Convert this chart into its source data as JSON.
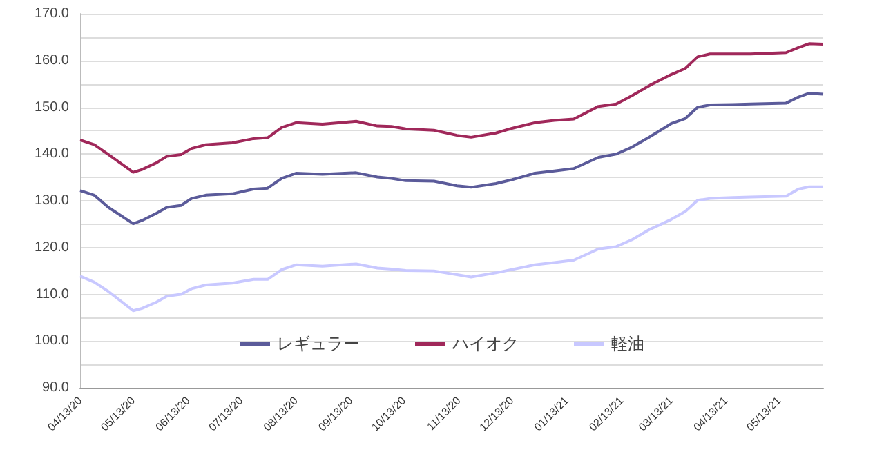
{
  "chart_data": {
    "type": "line",
    "x": [
      "2020-04-13",
      "2020-04-21",
      "2020-04-29",
      "2020-05-13",
      "2020-05-18",
      "2020-05-26",
      "2020-06-01",
      "2020-06-09",
      "2020-06-15",
      "2020-06-23",
      "2020-07-08",
      "2020-07-20",
      "2020-07-28",
      "2020-08-05",
      "2020-08-13",
      "2020-08-28",
      "2020-09-16",
      "2020-09-28",
      "2020-10-06",
      "2020-10-14",
      "2020-10-30",
      "2020-11-12",
      "2020-11-20",
      "2020-12-04",
      "2020-12-13",
      "2020-12-26",
      "2021-01-06",
      "2021-01-17",
      "2021-01-31",
      "2021-02-10",
      "2021-02-19",
      "2021-03-01",
      "2021-03-13",
      "2021-03-21",
      "2021-03-28",
      "2021-04-04",
      "2021-04-17",
      "2021-04-27",
      "2021-05-17",
      "2021-05-24",
      "2021-05-30",
      "2021-06-07"
    ],
    "series": [
      {
        "name": "レギュラー",
        "color": "#5b5b9a",
        "values": [
          132.2,
          131.2,
          128.6,
          125.1,
          125.8,
          127.3,
          128.6,
          129.0,
          130.5,
          131.2,
          131.5,
          132.5,
          132.7,
          134.8,
          135.9,
          135.7,
          136.0,
          135.1,
          134.8,
          134.3,
          134.2,
          133.2,
          132.9,
          133.7,
          134.5,
          135.9,
          136.4,
          136.9,
          139.3,
          140.0,
          141.5,
          143.7,
          146.5,
          147.6,
          150.0,
          150.5,
          150.6,
          150.7,
          150.9,
          152.2,
          153.0,
          152.8
        ]
      },
      {
        "name": "ハイオク",
        "color": "#a0285a",
        "values": [
          143.0,
          142.0,
          139.9,
          136.1,
          136.7,
          138.1,
          139.5,
          139.9,
          141.2,
          142.0,
          142.4,
          143.3,
          143.5,
          145.7,
          146.7,
          146.4,
          147.0,
          146.0,
          145.9,
          145.4,
          145.1,
          144.0,
          143.6,
          144.5,
          145.5,
          146.7,
          147.2,
          147.5,
          150.2,
          150.7,
          152.5,
          154.7,
          157.0,
          158.3,
          160.8,
          161.4,
          161.4,
          161.4,
          161.7,
          162.8,
          163.6,
          163.5
        ]
      },
      {
        "name": "軽油",
        "color": "#c8c8ff",
        "values": [
          113.9,
          112.6,
          110.6,
          106.5,
          107.0,
          108.3,
          109.6,
          110.0,
          111.2,
          112.0,
          112.4,
          113.2,
          113.2,
          115.3,
          116.3,
          116.0,
          116.5,
          115.6,
          115.4,
          115.1,
          115.0,
          114.2,
          113.7,
          114.6,
          115.3,
          116.3,
          116.8,
          117.3,
          119.7,
          120.2,
          121.7,
          123.9,
          126.0,
          127.7,
          130.1,
          130.5,
          130.7,
          130.8,
          131.0,
          132.5,
          133.0,
          133.0
        ]
      }
    ],
    "xlim": [
      "2020-04-13",
      "2021-06-07"
    ],
    "xticks": [
      {
        "value": "2020-04-13",
        "label": "04/13/20"
      },
      {
        "value": "2020-05-13",
        "label": "05/13/20"
      },
      {
        "value": "2020-06-13",
        "label": "06/13/20"
      },
      {
        "value": "2020-07-13",
        "label": "07/13/20"
      },
      {
        "value": "2020-08-13",
        "label": "08/13/20"
      },
      {
        "value": "2020-09-13",
        "label": "09/13/20"
      },
      {
        "value": "2020-10-13",
        "label": "10/13/20"
      },
      {
        "value": "2020-11-13",
        "label": "11/13/20"
      },
      {
        "value": "2020-12-13",
        "label": "12/13/20"
      },
      {
        "value": "2021-01-13",
        "label": "01/13/21"
      },
      {
        "value": "2021-02-13",
        "label": "02/13/21"
      },
      {
        "value": "2021-03-13",
        "label": "03/13/21"
      },
      {
        "value": "2021-04-13",
        "label": "04/13/21"
      },
      {
        "value": "2021-05-13",
        "label": "05/13/21"
      }
    ],
    "ylim": [
      90,
      170
    ],
    "yticks": [
      {
        "value": 90,
        "label": "90.0"
      },
      {
        "value": 95,
        "label": null
      },
      {
        "value": 100,
        "label": "100.0"
      },
      {
        "value": 105,
        "label": null
      },
      {
        "value": 110,
        "label": "110.0"
      },
      {
        "value": 115,
        "label": null
      },
      {
        "value": 120,
        "label": "120.0"
      },
      {
        "value": 125,
        "label": null
      },
      {
        "value": 130,
        "label": "130.0"
      },
      {
        "value": 135,
        "label": null
      },
      {
        "value": 140,
        "label": "140.0"
      },
      {
        "value": 145,
        "label": null
      },
      {
        "value": 150,
        "label": "150.0"
      },
      {
        "value": 155,
        "label": null
      },
      {
        "value": 160,
        "label": "160.0"
      },
      {
        "value": 165,
        "label": null
      },
      {
        "value": 170,
        "label": "170.0"
      }
    ],
    "grid": "y",
    "legend": "bottom",
    "marker": "none",
    "line_style": "solid"
  }
}
